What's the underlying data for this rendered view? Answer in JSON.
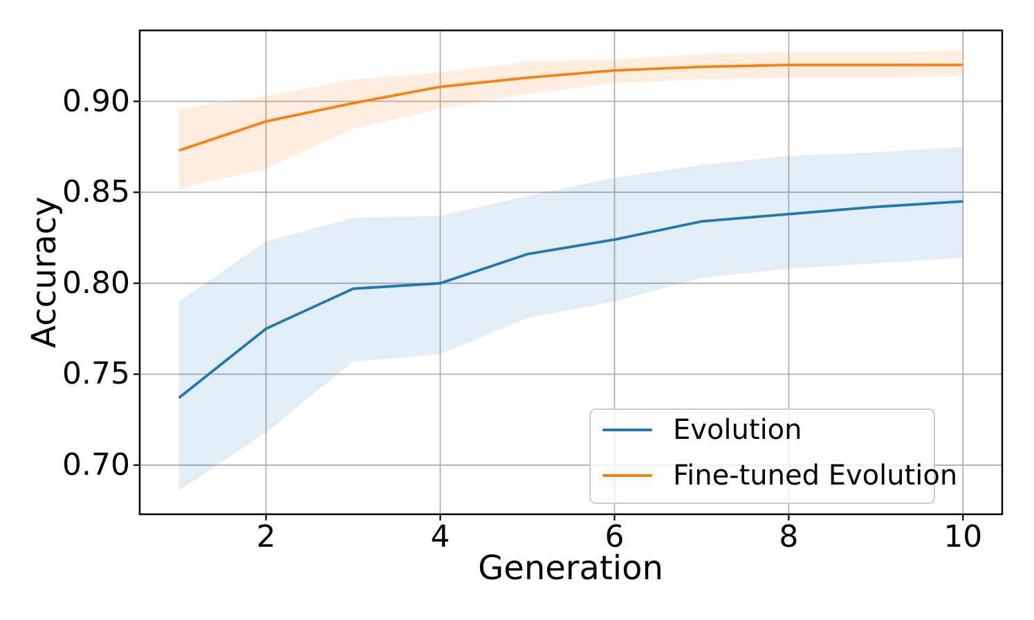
{
  "chart_data": {
    "type": "line",
    "title": "",
    "xlabel": "Generation",
    "ylabel": "Accuracy",
    "x": [
      1,
      2,
      3,
      4,
      5,
      6,
      7,
      8,
      9,
      10
    ],
    "series": [
      {
        "name": "Evolution",
        "color": "#1f77b4",
        "values": [
          0.737,
          0.775,
          0.797,
          0.8,
          0.816,
          0.824,
          0.834,
          0.838,
          0.842,
          0.845
        ],
        "band_low": [
          0.686,
          0.718,
          0.757,
          0.761,
          0.781,
          0.79,
          0.803,
          0.808,
          0.811,
          0.814
        ],
        "band_high": [
          0.79,
          0.823,
          0.836,
          0.837,
          0.848,
          0.858,
          0.865,
          0.87,
          0.872,
          0.875
        ]
      },
      {
        "name": "Fine-tuned Evolution",
        "color": "#ff7f0e",
        "values": [
          0.873,
          0.889,
          0.899,
          0.908,
          0.913,
          0.917,
          0.919,
          0.92,
          0.92,
          0.92
        ],
        "band_low": [
          0.852,
          0.863,
          0.885,
          0.896,
          0.904,
          0.91,
          0.912,
          0.913,
          0.913,
          0.914
        ],
        "band_high": [
          0.896,
          0.903,
          0.912,
          0.916,
          0.922,
          0.923,
          0.926,
          0.927,
          0.927,
          0.928
        ]
      }
    ],
    "xlim": [
      0.55,
      10.45
    ],
    "ylim": [
      0.673,
      0.939
    ],
    "xticks": [
      2,
      4,
      6,
      8,
      10
    ],
    "xtick_labels": [
      "2",
      "4",
      "6",
      "8",
      "10"
    ],
    "yticks": [
      0.7,
      0.75,
      0.8,
      0.85,
      0.9
    ],
    "ytick_labels": [
      "0.70",
      "0.75",
      "0.80",
      "0.85",
      "0.90"
    ],
    "grid": true,
    "grid_color": "#b0b0b0",
    "spine_color": "#000000",
    "background": "#ffffff",
    "band_alpha": 0.13,
    "legend_position": "lower right"
  }
}
